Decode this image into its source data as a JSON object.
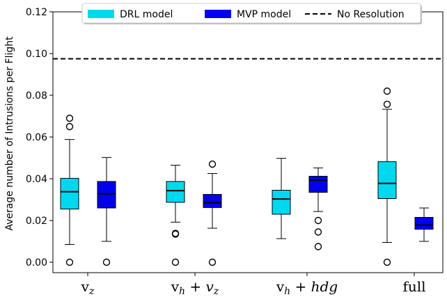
{
  "chart_data": {
    "type": "box",
    "ylabel": "Average number of Intrusions per Flight",
    "ylim": [
      -0.005,
      0.12
    ],
    "yticks": [
      "0.00",
      "0.02",
      "0.04",
      "0.06",
      "0.08",
      "0.10",
      "0.12"
    ],
    "ytick_values": [
      0.0,
      0.02,
      0.04,
      0.06,
      0.08,
      0.1,
      0.12
    ],
    "grid": false,
    "legend_placement": "top-center",
    "categories": [
      {
        "base": "v",
        "sub": "z",
        "tail": ""
      },
      {
        "base": "v",
        "sub": "h",
        "tail": " + v",
        "tail_sub": "z"
      },
      {
        "base": "v",
        "sub": "h",
        "tail": " + hdg",
        "tail_sub": ""
      },
      {
        "base": "full",
        "sub": "",
        "tail": ""
      }
    ],
    "series": [
      {
        "name": "DRL model",
        "color": "#00d8f0",
        "boxes": [
          {
            "whislo": 0.0085,
            "q1": 0.0255,
            "med": 0.0338,
            "q3": 0.0402,
            "whishi": 0.0588,
            "fliers": [
              0.0,
              0.065,
              0.069
            ]
          },
          {
            "whislo": 0.0192,
            "q1": 0.0287,
            "med": 0.0343,
            "q3": 0.0387,
            "whishi": 0.0465,
            "fliers": [
              0.0,
              0.0135,
              0.0138
            ]
          },
          {
            "whislo": 0.0113,
            "q1": 0.023,
            "med": 0.0303,
            "q3": 0.0345,
            "whishi": 0.0498,
            "fliers": []
          },
          {
            "whislo": 0.0095,
            "q1": 0.0305,
            "med": 0.0378,
            "q3": 0.0482,
            "whishi": 0.0733,
            "fliers": [
              0.0,
              0.0757,
              0.082
            ]
          }
        ]
      },
      {
        "name": "MVP model",
        "color": "#0000ee",
        "boxes": [
          {
            "whislo": 0.01,
            "q1": 0.026,
            "med": 0.0328,
            "q3": 0.0387,
            "whishi": 0.0502,
            "fliers": [
              0.0
            ]
          },
          {
            "whislo": 0.0163,
            "q1": 0.0262,
            "med": 0.0285,
            "q3": 0.0325,
            "whishi": 0.0425,
            "fliers": [
              0.0,
              0.047
            ]
          },
          {
            "whislo": 0.0243,
            "q1": 0.0335,
            "med": 0.0393,
            "q3": 0.0412,
            "whishi": 0.0452,
            "fliers": [
              0.0075,
              0.0145,
              0.02
            ]
          },
          {
            "whislo": 0.01,
            "q1": 0.0158,
            "med": 0.0178,
            "q3": 0.0215,
            "whishi": 0.026,
            "fliers": []
          }
        ]
      }
    ],
    "reference_lines": [
      {
        "name": "No Resolution",
        "y": 0.0975,
        "style": "dashed",
        "color": "#000000"
      }
    ]
  }
}
